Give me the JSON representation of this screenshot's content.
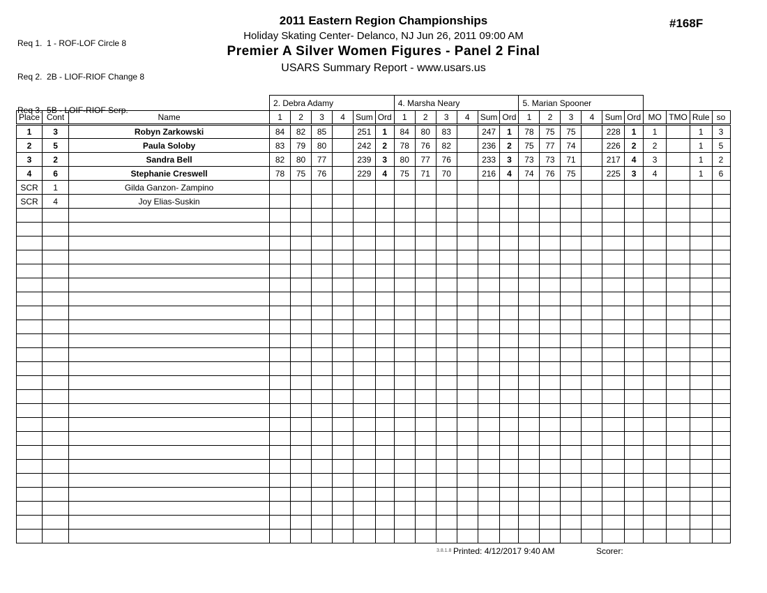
{
  "header": {
    "requirements": [
      "Req 1.  1 - ROF-LOF Circle 8",
      "Req 2.  2B - LIOF-RIOF Change 8",
      "Req 3.  5B - LOIF-RIOF Serp."
    ],
    "title": "2011 Eastern Region Championships",
    "venue_line": "Holiday Skating Center-  Delanco, NJ  Jun 26, 2011   09:00 AM",
    "event_title": "Premier A Silver Women Figures - Panel 2 Final",
    "report_line": "USARS Summary Report - www.usars.us",
    "event_number": "#168F"
  },
  "table": {
    "judges": [
      "2.  Debra Adamy",
      "4.  Marsha Neary",
      "5.  Marian Spooner"
    ],
    "left_headers": [
      "Place",
      "Cont",
      "Name"
    ],
    "score_headers": [
      "1",
      "2",
      "3",
      "4",
      "Sum"
    ],
    "ord_header": "Ord",
    "right_headers": [
      "MO",
      "TMO",
      "Rule",
      "so"
    ],
    "rows": [
      {
        "place": "1",
        "cont": "3",
        "name": "Robyn Zarkowski",
        "bold": true,
        "judges": [
          {
            "scores": [
              "84",
              "82",
              "85",
              ""
            ],
            "sum": "251",
            "ord": "1"
          },
          {
            "scores": [
              "84",
              "80",
              "83",
              ""
            ],
            "sum": "247",
            "ord": "1"
          },
          {
            "scores": [
              "78",
              "75",
              "75",
              ""
            ],
            "sum": "228",
            "ord": "1"
          }
        ],
        "mo": "1",
        "tmo": "",
        "rule": "1",
        "so": "3"
      },
      {
        "place": "2",
        "cont": "5",
        "name": "Paula Soloby",
        "bold": true,
        "judges": [
          {
            "scores": [
              "83",
              "79",
              "80",
              ""
            ],
            "sum": "242",
            "ord": "2"
          },
          {
            "scores": [
              "78",
              "76",
              "82",
              ""
            ],
            "sum": "236",
            "ord": "2"
          },
          {
            "scores": [
              "75",
              "77",
              "74",
              ""
            ],
            "sum": "226",
            "ord": "2"
          }
        ],
        "mo": "2",
        "tmo": "",
        "rule": "1",
        "so": "5"
      },
      {
        "place": "3",
        "cont": "2",
        "name": "Sandra Bell",
        "bold": true,
        "judges": [
          {
            "scores": [
              "82",
              "80",
              "77",
              ""
            ],
            "sum": "239",
            "ord": "3"
          },
          {
            "scores": [
              "80",
              "77",
              "76",
              ""
            ],
            "sum": "233",
            "ord": "3"
          },
          {
            "scores": [
              "73",
              "73",
              "71",
              ""
            ],
            "sum": "217",
            "ord": "4"
          }
        ],
        "mo": "3",
        "tmo": "",
        "rule": "1",
        "so": "2"
      },
      {
        "place": "4",
        "cont": "6",
        "name": "Stephanie Creswell",
        "bold": true,
        "judges": [
          {
            "scores": [
              "78",
              "75",
              "76",
              ""
            ],
            "sum": "229",
            "ord": "4"
          },
          {
            "scores": [
              "75",
              "71",
              "70",
              ""
            ],
            "sum": "216",
            "ord": "4"
          },
          {
            "scores": [
              "74",
              "76",
              "75",
              ""
            ],
            "sum": "225",
            "ord": "3"
          }
        ],
        "mo": "4",
        "tmo": "",
        "rule": "1",
        "so": "6"
      },
      {
        "place": "SCR",
        "cont": "1",
        "name": "Gilda Ganzon- Zampino",
        "bold": false,
        "judges": [
          {
            "scores": [
              "",
              "",
              "",
              ""
            ],
            "sum": "",
            "ord": ""
          },
          {
            "scores": [
              "",
              "",
              "",
              ""
            ],
            "sum": "",
            "ord": ""
          },
          {
            "scores": [
              "",
              "",
              "",
              ""
            ],
            "sum": "",
            "ord": ""
          }
        ],
        "mo": "",
        "tmo": "",
        "rule": "",
        "so": ""
      },
      {
        "place": "SCR",
        "cont": "4",
        "name": "Joy Elias-Suskin",
        "bold": false,
        "judges": [
          {
            "scores": [
              "",
              "",
              "",
              ""
            ],
            "sum": "",
            "ord": ""
          },
          {
            "scores": [
              "",
              "",
              "",
              ""
            ],
            "sum": "",
            "ord": ""
          },
          {
            "scores": [
              "",
              "",
              "",
              ""
            ],
            "sum": "",
            "ord": ""
          }
        ],
        "mo": "",
        "tmo": "",
        "rule": "",
        "so": ""
      }
    ],
    "empty_row_count": 24
  },
  "footer": {
    "version": "3.8.1.8",
    "printed_label": "Printed:  4/12/2017  9:40 AM",
    "scorer_label": "Scorer:"
  }
}
